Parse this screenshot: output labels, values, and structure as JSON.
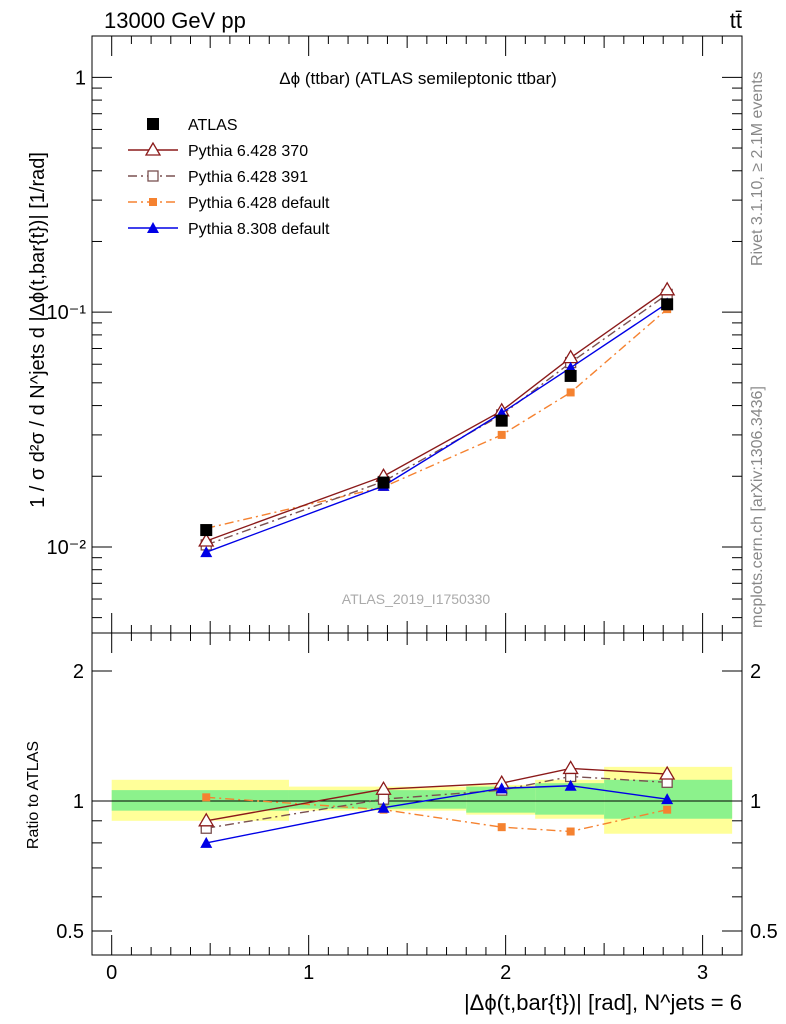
{
  "header": {
    "left_label": "13000 GeV pp",
    "right_label": "tt̄"
  },
  "side_labels": {
    "rivet": "Rivet 3.1.10, ≥ 2.1M events",
    "mcplots": "mcplots.cern.ch [arXiv:1306.3436]"
  },
  "colors": {
    "atlas": "#000000",
    "p370": "#8b1a1a",
    "p391": "#7a5050",
    "pdefault": "#f58230",
    "p8": "#0000e6",
    "band_inner": "#8cf28c",
    "band_outer": "#ffff99"
  },
  "chart_data": [
    {
      "type": "line",
      "title": "Δϕ (ttbar) (ATLAS semileptonic ttbar)",
      "watermark": "ATLAS_2019_I1750330",
      "ylabel": "1 / σ d²σ / d N^jets d |Δϕ(t,bar{t})| [1/rad]",
      "xlabel": "",
      "yscale": "log",
      "ylim": [
        0.0043,
        1.5
      ],
      "xlim": [
        -0.1,
        3.2
      ],
      "yticks": [
        {
          "v": 0.01,
          "label": "10⁻²"
        },
        {
          "v": 0.1,
          "label": "10⁻¹"
        },
        {
          "v": 1,
          "label": "1"
        }
      ],
      "legend_position": "top-left",
      "x": [
        0.48,
        1.38,
        1.98,
        2.33,
        2.82
      ],
      "series": [
        {
          "name": "ATLAS",
          "key": "atlas",
          "marker": "square-filled",
          "line": "none",
          "values": [
            0.0118,
            0.0188,
            0.0345,
            0.0535,
            0.108
          ]
        },
        {
          "name": "Pythia 6.428 370",
          "key": "p370",
          "marker": "triangle-open",
          "line": "solid",
          "values": [
            0.0106,
            0.02,
            0.038,
            0.064,
            0.1245
          ]
        },
        {
          "name": "Pythia 6.428 391",
          "key": "p391",
          "marker": "square-open",
          "line": "dashdot",
          "values": [
            0.0102,
            0.019,
            0.0365,
            0.061,
            0.119
          ]
        },
        {
          "name": "Pythia 6.428 default",
          "key": "pdefault",
          "marker": "square-small",
          "line": "dashdot",
          "values": [
            0.012,
            0.018,
            0.03,
            0.0455,
            0.103
          ]
        },
        {
          "name": "Pythia 8.308 default",
          "key": "p8",
          "marker": "triangle-filled",
          "line": "solid",
          "values": [
            0.0095,
            0.0182,
            0.0372,
            0.058,
            0.109
          ]
        }
      ]
    },
    {
      "type": "line",
      "ylabel": "Ratio to ATLAS",
      "xlabel": "|Δϕ(t,bar{t})| [rad], N^jets = 6",
      "yscale": "log",
      "ylim": [
        0.44,
        2.45
      ],
      "xlim": [
        -0.1,
        3.2
      ],
      "xticks": [
        0,
        1,
        2,
        3
      ],
      "yticks": [
        {
          "v": 0.5,
          "label": "0.5"
        },
        {
          "v": 1,
          "label": "1"
        },
        {
          "v": 2,
          "label": "2"
        }
      ],
      "bands": [
        {
          "x0": 0.0,
          "x1": 0.9,
          "inner": [
            0.95,
            1.06
          ],
          "outer": [
            0.9,
            1.12
          ]
        },
        {
          "x0": 0.9,
          "x1": 1.8,
          "inner": [
            0.96,
            1.06
          ],
          "outer": [
            0.95,
            1.08
          ]
        },
        {
          "x0": 1.8,
          "x1": 2.15,
          "inner": [
            0.94,
            1.08
          ],
          "outer": [
            0.93,
            1.09
          ]
        },
        {
          "x0": 2.15,
          "x1": 2.5,
          "inner": [
            0.93,
            1.1
          ],
          "outer": [
            0.91,
            1.12
          ]
        },
        {
          "x0": 2.5,
          "x1": 3.15,
          "inner": [
            0.91,
            1.12
          ],
          "outer": [
            0.84,
            1.2
          ]
        }
      ],
      "x": [
        0.48,
        1.38,
        1.98,
        2.33,
        2.82
      ],
      "series": [
        {
          "name": "Pythia 6.428 370",
          "key": "p370",
          "values": [
            0.9,
            1.065,
            1.1,
            1.19,
            1.155
          ]
        },
        {
          "name": "Pythia 6.428 391",
          "key": "p391",
          "values": [
            0.865,
            1.01,
            1.06,
            1.14,
            1.105
          ]
        },
        {
          "name": "Pythia 6.428 default",
          "key": "pdefault",
          "values": [
            1.02,
            0.955,
            0.87,
            0.85,
            0.955
          ]
        },
        {
          "name": "Pythia 8.308 default",
          "key": "p8",
          "values": [
            0.8,
            0.965,
            1.07,
            1.085,
            1.01
          ]
        }
      ]
    }
  ]
}
